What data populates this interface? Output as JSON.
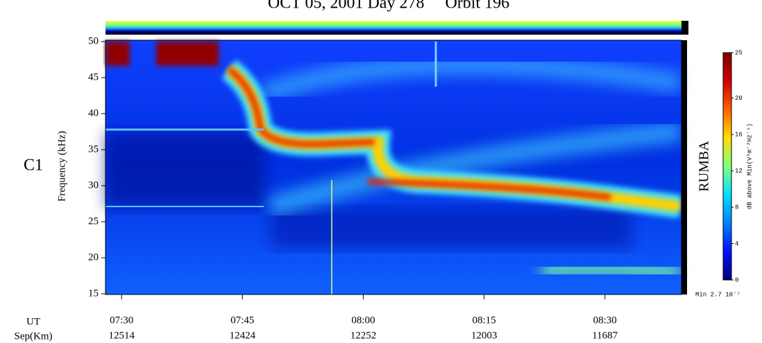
{
  "chart_data": {
    "type": "spectrogram",
    "title": "OCT 05, 2001 Day 278     Orbit 196",
    "panel_label": "C1",
    "instrument": "RUMBA",
    "ylabel": "Frequency (kHz)",
    "ylim": [
      15,
      50
    ],
    "yticks": [
      15,
      20,
      25,
      30,
      35,
      40,
      45,
      50
    ],
    "xlim": [
      448,
      519.5
    ],
    "xticks": [
      {
        "value": 450,
        "label": "07:30"
      },
      {
        "value": 465,
        "label": "07:45"
      },
      {
        "value": 480,
        "label": "08:00"
      },
      {
        "value": 495,
        "label": "08:15"
      },
      {
        "value": 510,
        "label": "08:30"
      }
    ],
    "x_row_labels": [
      "UT",
      "Sep(Km)"
    ],
    "sep_km": [
      12514,
      12424,
      12252,
      12003,
      11687
    ],
    "colorbar": {
      "label": "dB above Min(V²m⁻²Hz⁻¹)",
      "lim": [
        0,
        25
      ],
      "ticks": [
        0,
        4,
        8,
        12,
        16,
        20,
        25
      ],
      "colors": [
        "#000080",
        "#0010ff",
        "#0080ff",
        "#00e0ff",
        "#80ff80",
        "#ffe000",
        "#ff6000",
        "#d00000",
        "#800000"
      ]
    },
    "min_note": "Min 2.7 10⁻⁷"
  }
}
